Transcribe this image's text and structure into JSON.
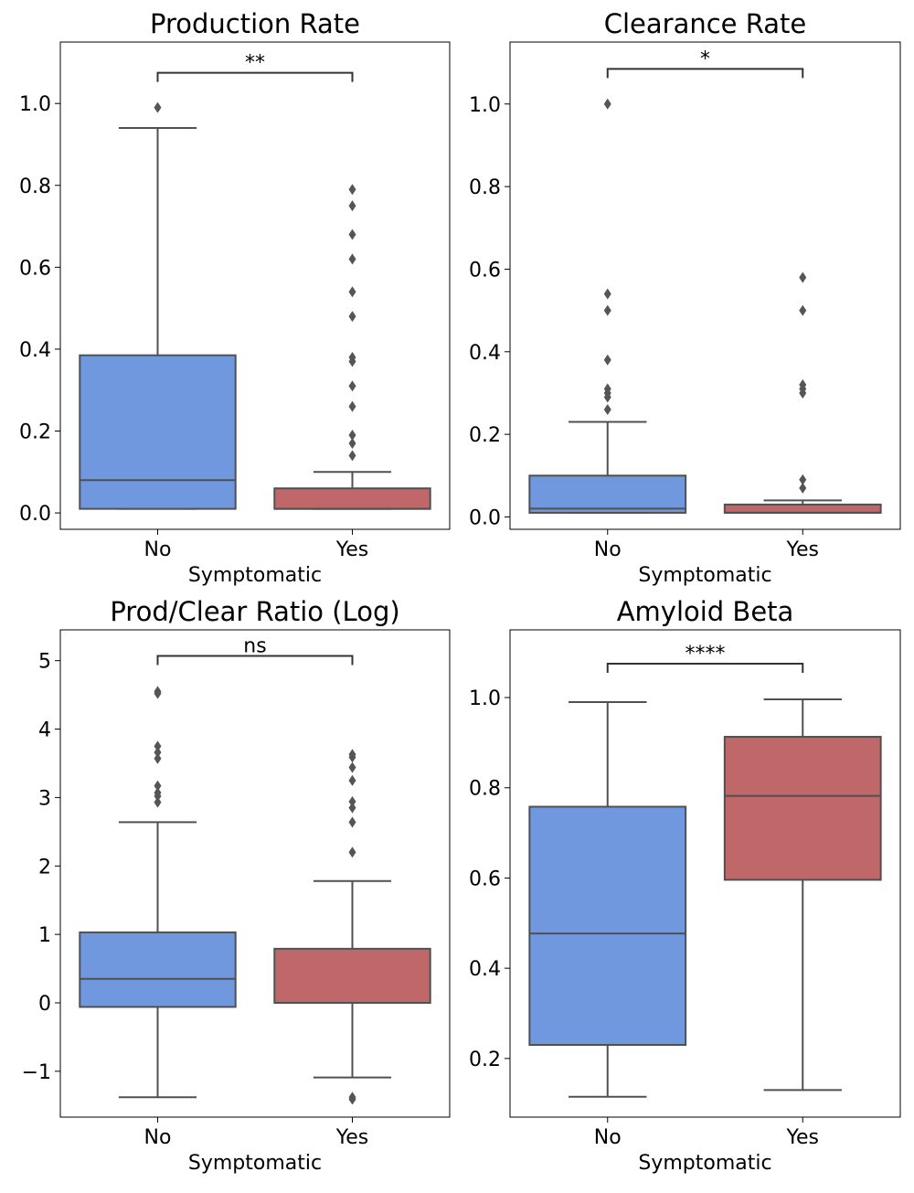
{
  "colors": {
    "No": "#6f98de",
    "Yes": "#c0676a",
    "line": "#505050",
    "outlier": "#555555"
  },
  "chart_data": [
    {
      "type": "box",
      "title": "Production Rate",
      "xlabel": "Symptomatic",
      "ylabel": "",
      "categories": [
        "No",
        "Yes"
      ],
      "ylim": [
        -0.04,
        1.15
      ],
      "yticks": [
        0.0,
        0.2,
        0.4,
        0.6,
        0.8,
        1.0
      ],
      "ytick_labels": [
        "0.0",
        "0.2",
        "0.4",
        "0.6",
        "0.8",
        "1.0"
      ],
      "significance": "**",
      "sig_y": 1.075,
      "boxes": [
        {
          "category": "No",
          "whisker_low": 0.01,
          "q1": 0.01,
          "median": 0.08,
          "q3": 0.385,
          "whisker_high": 0.94,
          "outliers": [
            0.99
          ]
        },
        {
          "category": "Yes",
          "whisker_low": 0.01,
          "q1": 0.01,
          "median": 0.01,
          "q3": 0.06,
          "whisker_high": 0.1,
          "outliers": [
            0.14,
            0.17,
            0.19,
            0.26,
            0.31,
            0.37,
            0.38,
            0.48,
            0.54,
            0.62,
            0.68,
            0.75,
            0.79
          ]
        }
      ]
    },
    {
      "type": "box",
      "title": "Clearance Rate",
      "xlabel": "Symptomatic",
      "ylabel": "",
      "categories": [
        "No",
        "Yes"
      ],
      "ylim": [
        -0.03,
        1.15
      ],
      "yticks": [
        0.0,
        0.2,
        0.4,
        0.6,
        0.8,
        1.0
      ],
      "ytick_labels": [
        "0.0",
        "0.2",
        "0.4",
        "0.6",
        "0.8",
        "1.0"
      ],
      "significance": "*",
      "sig_y": 1.085,
      "boxes": [
        {
          "category": "No",
          "whisker_low": 0.01,
          "q1": 0.01,
          "median": 0.02,
          "q3": 0.1,
          "whisker_high": 0.23,
          "outliers": [
            0.26,
            0.29,
            0.3,
            0.31,
            0.38,
            0.5,
            0.54,
            1.0
          ]
        },
        {
          "category": "Yes",
          "whisker_low": 0.01,
          "q1": 0.01,
          "median": 0.01,
          "q3": 0.03,
          "whisker_high": 0.04,
          "outliers": [
            0.07,
            0.09,
            0.3,
            0.31,
            0.32,
            0.5,
            0.58
          ]
        }
      ]
    },
    {
      "type": "box",
      "title": "Prod/Clear Ratio (Log)",
      "xlabel": "Symptomatic",
      "ylabel": "",
      "categories": [
        "No",
        "Yes"
      ],
      "ylim": [
        -1.67,
        5.45
      ],
      "yticks": [
        -1,
        0,
        1,
        2,
        3,
        4,
        5
      ],
      "ytick_labels": [
        "−1",
        "0",
        "1",
        "2",
        "3",
        "4",
        "5"
      ],
      "significance": "ns",
      "sig_y": 5.07,
      "boxes": [
        {
          "category": "No",
          "whisker_low": -1.38,
          "q1": -0.06,
          "median": 0.35,
          "q3": 1.03,
          "whisker_high": 2.64,
          "outliers": [
            2.93,
            3.02,
            3.07,
            3.17,
            3.57,
            3.66,
            3.75,
            4.52,
            4.55
          ]
        },
        {
          "category": "Yes",
          "whisker_low": -1.09,
          "q1": 0.0,
          "median": 0.0,
          "q3": 0.79,
          "whisker_high": 1.78,
          "outliers": [
            -1.38,
            -1.41,
            2.2,
            2.64,
            2.85,
            2.94,
            3.25,
            3.44,
            3.59,
            3.63
          ]
        }
      ]
    },
    {
      "type": "box",
      "title": "Amyloid Beta",
      "xlabel": "Symptomatic",
      "ylabel": "",
      "categories": [
        "No",
        "Yes"
      ],
      "ylim": [
        0.07,
        1.15
      ],
      "yticks": [
        0.2,
        0.4,
        0.6,
        0.8,
        1.0
      ],
      "ytick_labels": [
        "0.2",
        "0.4",
        "0.6",
        "0.8",
        "1.0"
      ],
      "significance": "****",
      "sig_y": 1.075,
      "boxes": [
        {
          "category": "No",
          "whisker_low": 0.115,
          "q1": 0.23,
          "median": 0.477,
          "q3": 0.758,
          "whisker_high": 0.99,
          "outliers": []
        },
        {
          "category": "Yes",
          "whisker_low": 0.13,
          "q1": 0.596,
          "median": 0.782,
          "q3": 0.913,
          "whisker_high": 0.996,
          "outliers": []
        }
      ]
    }
  ]
}
